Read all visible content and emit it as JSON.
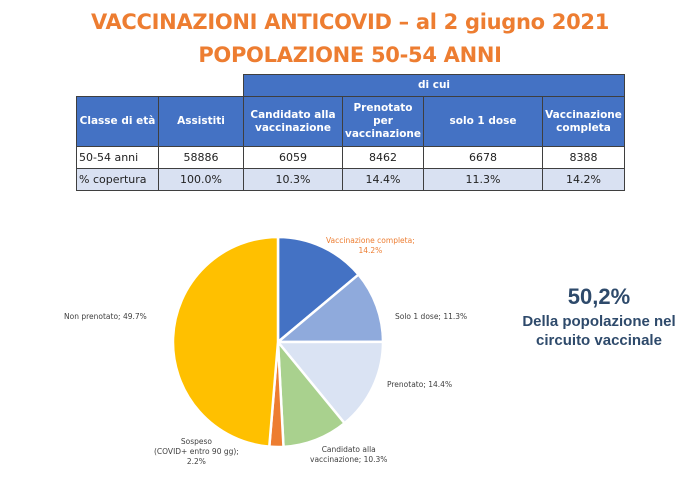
{
  "header": {
    "title_line1": "VACCINAZIONI ANTICOVID – al 2 giugno 2021",
    "title_line2": "POPOLAZIONE 50-54 ANNI"
  },
  "table": {
    "group_header": "di cui",
    "columns": [
      "Classe di età",
      "Assistiti",
      "Candidato alla vaccinazione",
      "Prenotato per vaccinazione",
      "solo 1 dose",
      "Vaccinazione completa"
    ],
    "rows": [
      [
        "50-54 anni",
        "58886",
        "6059",
        "8462",
        "6678",
        "8388"
      ],
      [
        "% copertura",
        "100.0%",
        "10.3%",
        "14.4%",
        "11.3%",
        "14.2%"
      ]
    ]
  },
  "kpi": {
    "value": "50,2%",
    "line1": "Della popolazione nel",
    "line2": "circuito vaccinale"
  },
  "chart_data": {
    "type": "pie",
    "title": "",
    "slices": [
      {
        "label": "Vaccinazione completa",
        "value": 14.2,
        "color": "#4472C4",
        "display": "Vaccinazione completa; 14.2%"
      },
      {
        "label": "Solo 1 dose",
        "value": 11.3,
        "color": "#8FAADC",
        "display": "Solo 1 dose; 11.3%"
      },
      {
        "label": "Prenotato",
        "value": 14.4,
        "color": "#DAE3F3",
        "display": "Prenotato; 14.4%"
      },
      {
        "label": "Candidato alla vaccinazione",
        "value": 10.3,
        "color": "#A9D18E",
        "display": "Candidato alla vaccinazione; 10.3%"
      },
      {
        "label": "Sospeso (COVID+ entro 90 gg)",
        "value": 2.2,
        "color": "#ED7D31",
        "display": "Sospeso (COVID+ entro 90 gg); 2.2%"
      },
      {
        "label": "Non prenotato",
        "value": 49.7,
        "color": "#FFC000",
        "display": "Non prenotato; 49.7%"
      }
    ],
    "labels": {
      "vacc_l1": "Vaccinazione completa;",
      "vacc_l2": "14.2%",
      "solo": "Solo 1 dose; 11.3%",
      "pren": "Prenotato; 14.4%",
      "cand_l1": "Candidato alla",
      "cand_l2": "vaccinazione; 10.3%",
      "sosp_l1": "Sospeso",
      "sosp_l2": "(COVID+ entro 90 gg);",
      "sosp_l3": "2.2%",
      "non": "Non prenotato; 49.7%"
    },
    "legend": "none (data labels on slices)"
  }
}
